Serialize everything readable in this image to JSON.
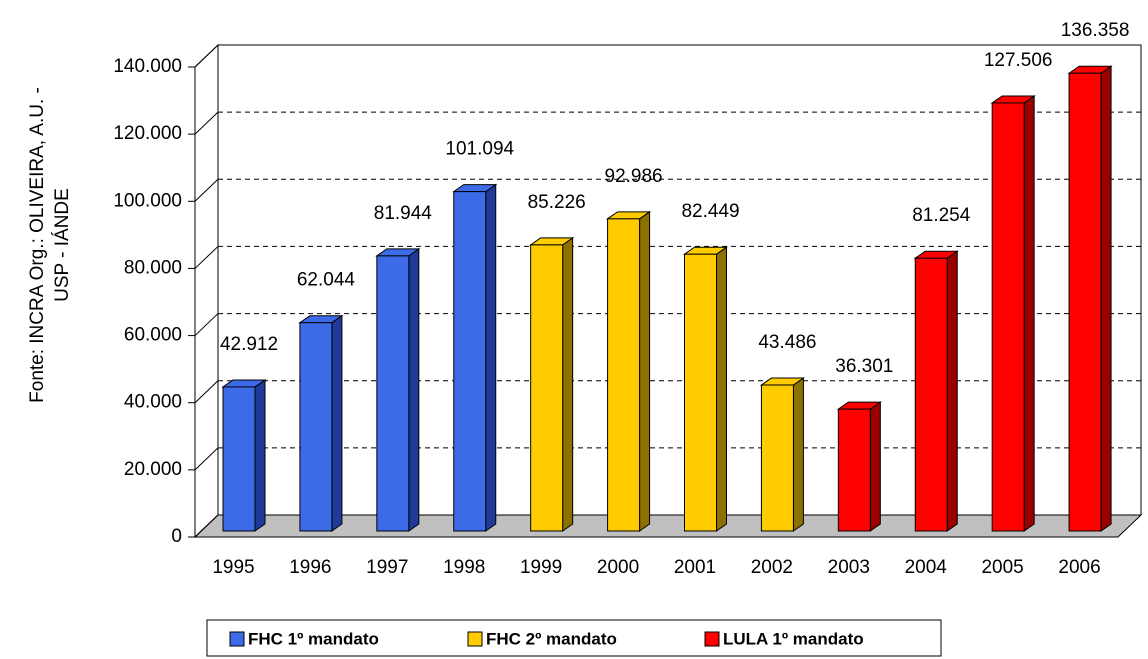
{
  "chart_data": {
    "type": "bar3d",
    "ylabel": [
      "Fonte: INCRA  Org.: OLIVEIRA, A.U. -",
      "USP - IÁNDE"
    ],
    "categories": [
      "1995",
      "1996",
      "1997",
      "1998",
      "1999",
      "2000",
      "2001",
      "2002",
      "2003",
      "2004",
      "2005",
      "2006"
    ],
    "series": [
      {
        "name": "FHC 1º mandato",
        "color": "#3d6be8",
        "side": "#1f3a99",
        "values": [
          42912,
          62044,
          81944,
          101094,
          null,
          null,
          null,
          null,
          null,
          null,
          null,
          null
        ],
        "value_labels": [
          "42.912",
          "62.044",
          "81.944",
          "101.094",
          null,
          null,
          null,
          null,
          null,
          null,
          null,
          null
        ]
      },
      {
        "name": "FHC 2º mandato",
        "color": "#ffcc00",
        "side": "#8c7000",
        "values": [
          null,
          null,
          null,
          null,
          85226,
          92986,
          82449,
          43486,
          null,
          null,
          null,
          null
        ],
        "value_labels": [
          null,
          null,
          null,
          null,
          "85.226",
          "92.986",
          "82.449",
          "43.486",
          null,
          null,
          null,
          null
        ]
      },
      {
        "name": "LULA 1º mandato",
        "color": "#ff0000",
        "side": "#990000",
        "values": [
          null,
          null,
          null,
          null,
          null,
          null,
          null,
          null,
          36301,
          81254,
          127506,
          136358
        ],
        "value_labels": [
          null,
          null,
          null,
          null,
          null,
          null,
          null,
          null,
          "36.301",
          "81.254",
          "127.506",
          "136.358"
        ]
      }
    ],
    "ylim": [
      0,
      140000
    ],
    "yticks": [
      0,
      {
        "value": 20000,
        "label": "20.000"
      },
      {
        "value": 40000,
        "label": "40.000"
      },
      {
        "value": 60000,
        "label": "60.000"
      },
      {
        "value": 80000,
        "label": "80.000"
      },
      {
        "value": 100000,
        "label": "100.000"
      },
      {
        "value": 120000,
        "label": "120.000"
      },
      {
        "value": 140000,
        "label": "140.000"
      }
    ],
    "grid": true,
    "legend": "bottom"
  }
}
